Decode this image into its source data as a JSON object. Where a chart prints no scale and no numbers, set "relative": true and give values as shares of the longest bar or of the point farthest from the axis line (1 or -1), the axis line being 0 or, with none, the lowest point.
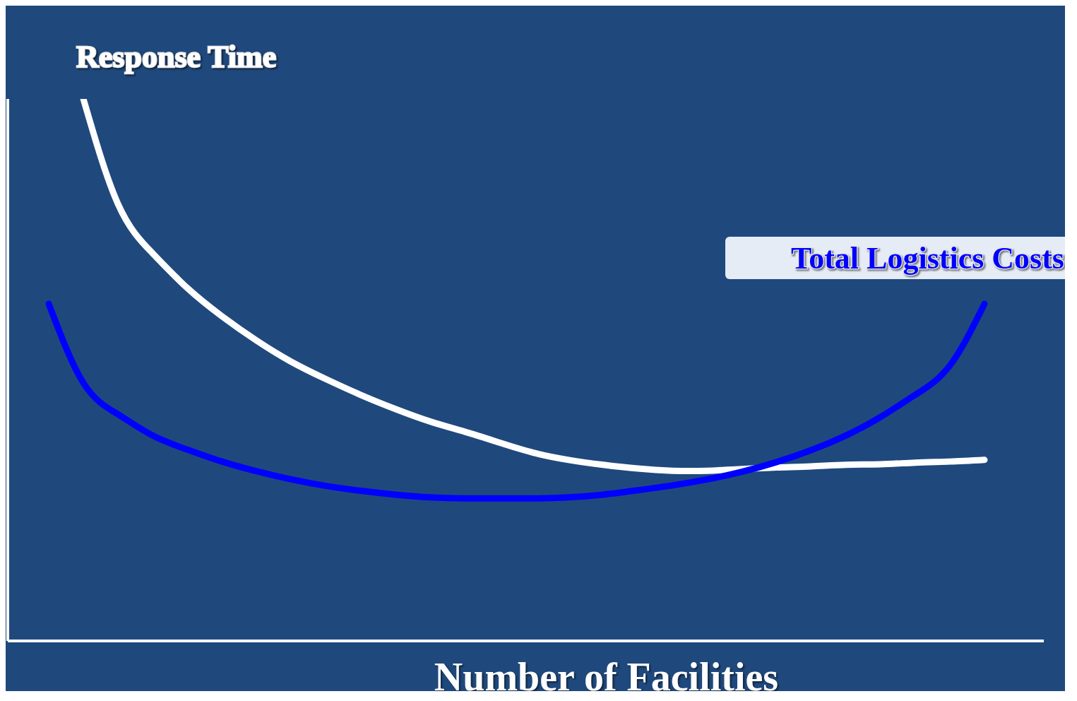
{
  "chart_data": {
    "type": "line",
    "xlabel": "Number of Facilities",
    "relative": true,
    "grid": false,
    "legend": false,
    "marker": "none",
    "line_style": "solid",
    "categories": [
      null,
      null,
      null,
      null,
      null,
      null,
      null,
      null,
      null,
      null,
      null,
      null,
      null,
      null,
      null,
      null,
      null,
      null,
      null,
      null,
      null,
      null,
      null,
      null,
      null,
      null,
      null,
      null
    ],
    "series": [
      {
        "name": "Response Time",
        "color": "#ffffff",
        "values": [
          null,
          1.0,
          0.806,
          0.715,
          0.651,
          0.599,
          0.554,
          0.515,
          0.483,
          0.454,
          0.428,
          0.405,
          0.386,
          0.366,
          0.347,
          0.334,
          0.325,
          0.318,
          0.314,
          0.314,
          0.317,
          0.32,
          0.322,
          0.325,
          0.326,
          0.329,
          0.331,
          0.334
        ]
      },
      {
        "name": "Total Logistics Costs",
        "color": "#0000ff",
        "values": [
          0.622,
          0.476,
          0.418,
          0.379,
          0.353,
          0.331,
          0.313,
          0.298,
          0.286,
          0.277,
          0.27,
          0.265,
          0.263,
          0.263,
          0.263,
          0.265,
          0.27,
          0.278,
          0.287,
          0.298,
          0.312,
          0.33,
          0.352,
          0.379,
          0.413,
          0.454,
          0.508,
          0.622
        ]
      }
    ]
  }
}
